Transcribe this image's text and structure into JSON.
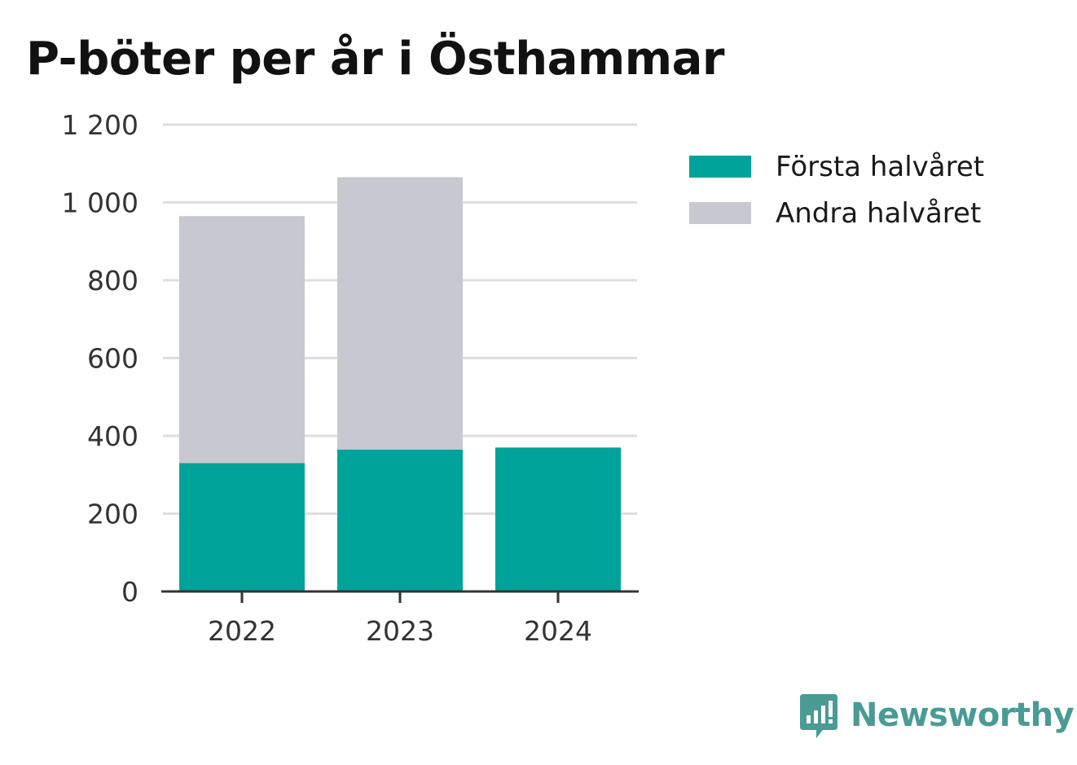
{
  "title": "P-böter per år i Östhammar",
  "brand": {
    "name": "Newsworthy",
    "icon": "newsworthy-logo-icon"
  },
  "colors": {
    "first_half": "#00a39a",
    "second_half": "#c8c8d0",
    "grid": "#dedee2",
    "axis": "#333333"
  },
  "chart_data": {
    "type": "bar",
    "stacked": true,
    "title": "P-böter per år i Östhammar",
    "xlabel": "",
    "ylabel": "",
    "categories": [
      "2022",
      "2023",
      "2024"
    ],
    "series": [
      {
        "name": "Första halvåret",
        "values": [
          330,
          365,
          370
        ],
        "color": "#00a39a"
      },
      {
        "name": "Andra halvåret",
        "values": [
          635,
          700,
          0
        ],
        "color": "#c8c8d0"
      }
    ],
    "ylim": [
      0,
      1200
    ],
    "yticks": [
      0,
      200,
      400,
      600,
      800,
      1000,
      1200
    ],
    "ytick_labels": [
      "0",
      "200",
      "400",
      "600",
      "800",
      "1 000",
      "1 200"
    ],
    "grid": true,
    "legend_position": "top-right"
  }
}
